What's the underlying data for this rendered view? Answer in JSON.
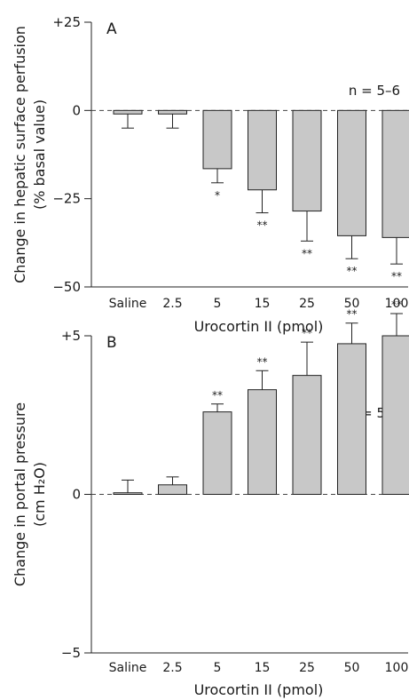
{
  "chart_data": [
    {
      "type": "bar",
      "panel_label": "A",
      "categories": [
        "Saline",
        "2.5",
        "5",
        "15",
        "25",
        "50",
        "100"
      ],
      "values": [
        -1,
        -1,
        -16.5,
        -22.5,
        -28.5,
        -35.5,
        -36
      ],
      "errors": [
        4,
        4,
        4,
        6.5,
        8.5,
        6.5,
        7.5
      ],
      "significance": [
        "",
        "",
        "*",
        "**",
        "**",
        "**",
        "**"
      ],
      "ylim": [
        -50,
        25
      ],
      "yticks": [
        25,
        0,
        -25,
        -50
      ],
      "ytick_labels": [
        "+25",
        "0",
        "−25",
        "−50"
      ],
      "xlabel": "Urocortin II (pmol)",
      "ylabel": [
        "Change in hepatic surface perfusion",
        "(% basal value)"
      ],
      "n_label": "n = 5–6",
      "zero_line": "dashed",
      "bar_color": "#c8c8c8"
    },
    {
      "type": "bar",
      "panel_label": "B",
      "categories": [
        "Saline",
        "2.5",
        "5",
        "15",
        "25",
        "50",
        "100"
      ],
      "values": [
        0.05,
        0.3,
        2.6,
        3.3,
        3.75,
        4.75,
        5.0
      ],
      "errors": [
        0.4,
        0.25,
        0.25,
        0.6,
        1.05,
        0.65,
        0.7
      ],
      "significance": [
        "",
        "",
        "**",
        "**",
        "**",
        "**",
        "**"
      ],
      "ylim": [
        -5,
        6
      ],
      "yticks": [
        5,
        0,
        -5
      ],
      "ytick_labels": [
        "+5",
        "0",
        "−5"
      ],
      "xlabel": "Urocortin II (pmol)",
      "ylabel": [
        "Change in portal pressure",
        "(cm H₂O)"
      ],
      "n_label": "n = 5–6",
      "zero_line": "dashed",
      "bar_color": "#c8c8c8"
    }
  ]
}
